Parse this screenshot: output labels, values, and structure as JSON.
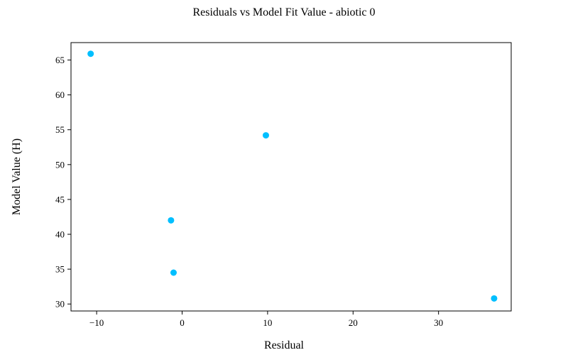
{
  "chart_data": {
    "type": "scatter",
    "title": "Residuals vs Model Fit Value  - abiotic 0",
    "xlabel": "Residual",
    "ylabel": "Model Value (H)",
    "xlim": [
      -13,
      38.5
    ],
    "ylim": [
      29,
      67.5
    ],
    "xticks": [
      -10,
      0,
      10,
      20,
      30
    ],
    "yticks": [
      30,
      35,
      40,
      45,
      50,
      55,
      60,
      65
    ],
    "xtick_labels": [
      "−10",
      "0",
      "10",
      "20",
      "30"
    ],
    "ytick_labels": [
      "30",
      "35",
      "40",
      "45",
      "50",
      "55",
      "60",
      "65"
    ],
    "grid": false,
    "legend": "none",
    "marker_color": "#00bfff",
    "points": [
      {
        "x": -10.7,
        "y": 65.9
      },
      {
        "x": 9.8,
        "y": 54.2
      },
      {
        "x": -1.3,
        "y": 42.0
      },
      {
        "x": -1.0,
        "y": 34.5
      },
      {
        "x": 36.5,
        "y": 30.8
      }
    ]
  }
}
